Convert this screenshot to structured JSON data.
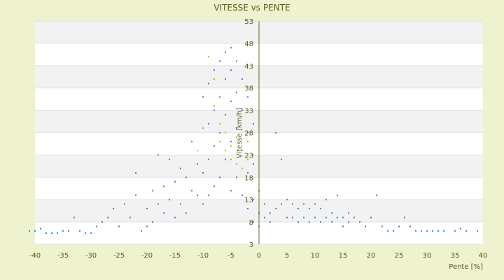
{
  "chart_data": {
    "type": "scatter",
    "title": "VITESSE vs PENTE",
    "xlabel": "Pente [%]",
    "ylabel": "Vitesse [km/h]",
    "xlim": [
      -40,
      40
    ],
    "ylim": [
      3,
      53
    ],
    "xticks": [
      "-40",
      "-35",
      "-30",
      "-25",
      "-20",
      "-15",
      "-10",
      "-5",
      "0",
      "5",
      "10",
      "15",
      "20",
      "25",
      "30",
      "35",
      "40"
    ],
    "yticks": [
      "3",
      "8",
      "13",
      "18",
      "23",
      "28",
      "33",
      "38",
      "43",
      "48",
      "53"
    ],
    "grid": "horizontal alternating bands",
    "legend": "none",
    "series": [
      {
        "color": "#2E86DE",
        "points": [
          [
            -41,
            6
          ],
          [
            -40,
            6
          ],
          [
            -39,
            6.5
          ],
          [
            -38,
            5.5
          ],
          [
            -37,
            5.5
          ],
          [
            -36,
            5.5
          ],
          [
            -35,
            6
          ],
          [
            -34,
            6
          ],
          [
            -33,
            9
          ],
          [
            -32,
            6
          ],
          [
            -31,
            5.5
          ],
          [
            -30,
            5.5
          ],
          [
            -29,
            7
          ],
          [
            -28,
            8
          ],
          [
            -27,
            9
          ],
          [
            -26,
            11
          ],
          [
            -25,
            7
          ],
          [
            -24,
            12
          ],
          [
            -23,
            9
          ],
          [
            -22,
            14
          ],
          [
            -22,
            19
          ],
          [
            -21,
            6
          ],
          [
            -20,
            7
          ],
          [
            -20,
            11
          ],
          [
            -19,
            15
          ],
          [
            -19,
            8
          ],
          [
            -18,
            23
          ],
          [
            -18,
            12
          ],
          [
            -17,
            16
          ],
          [
            -17,
            10
          ],
          [
            -16,
            22
          ],
          [
            -16,
            13
          ],
          [
            -15,
            17
          ],
          [
            -15,
            9
          ],
          [
            -14,
            20
          ],
          [
            -14,
            12
          ],
          [
            -13,
            18
          ],
          [
            -13,
            10
          ],
          [
            -12,
            26
          ],
          [
            -12,
            15
          ],
          [
            -11,
            21
          ],
          [
            -11,
            14
          ],
          [
            -10,
            36
          ],
          [
            -10,
            19
          ],
          [
            -10,
            12
          ],
          [
            -9,
            39
          ],
          [
            -9,
            30
          ],
          [
            -9,
            22
          ],
          [
            -9,
            14
          ],
          [
            -8,
            42
          ],
          [
            -8,
            33
          ],
          [
            -8,
            25
          ],
          [
            -8,
            16
          ],
          [
            -7,
            44
          ],
          [
            -7,
            36
          ],
          [
            -7,
            28
          ],
          [
            -7,
            18
          ],
          [
            -6,
            46
          ],
          [
            -6,
            40
          ],
          [
            -6,
            32
          ],
          [
            -6,
            22
          ],
          [
            -5,
            47
          ],
          [
            -5,
            42
          ],
          [
            -5,
            35
          ],
          [
            -5,
            26
          ],
          [
            -5,
            15
          ],
          [
            -4,
            44
          ],
          [
            -4,
            37
          ],
          [
            -4,
            29
          ],
          [
            -4,
            18
          ],
          [
            -3,
            40
          ],
          [
            -3,
            33
          ],
          [
            -3,
            24
          ],
          [
            -3,
            14
          ],
          [
            -2,
            36
          ],
          [
            -2,
            28
          ],
          [
            -2,
            19
          ],
          [
            -2,
            11
          ],
          [
            -1,
            30
          ],
          [
            -1,
            21
          ],
          [
            -1,
            13
          ],
          [
            -1,
            8
          ],
          [
            0,
            15
          ],
          [
            0,
            10
          ],
          [
            0,
            7
          ],
          [
            1,
            12
          ],
          [
            1,
            9
          ],
          [
            2,
            10
          ],
          [
            2,
            8
          ],
          [
            3,
            28
          ],
          [
            3,
            11
          ],
          [
            4,
            22
          ],
          [
            4,
            12
          ],
          [
            5,
            13
          ],
          [
            5,
            9
          ],
          [
            6,
            12
          ],
          [
            6,
            9
          ],
          [
            7,
            11
          ],
          [
            7,
            8
          ],
          [
            8,
            12
          ],
          [
            8,
            9
          ],
          [
            9,
            11
          ],
          [
            9,
            8
          ],
          [
            10,
            12
          ],
          [
            10,
            9
          ],
          [
            11,
            11
          ],
          [
            11,
            8
          ],
          [
            12,
            13
          ],
          [
            12,
            9
          ],
          [
            13,
            10
          ],
          [
            13,
            8
          ],
          [
            14,
            14
          ],
          [
            14,
            9
          ],
          [
            15,
            9
          ],
          [
            15,
            7
          ],
          [
            16,
            10
          ],
          [
            16,
            8
          ],
          [
            17,
            9
          ],
          [
            18,
            8
          ],
          [
            19,
            7
          ],
          [
            20,
            9
          ],
          [
            21,
            14
          ],
          [
            22,
            7
          ],
          [
            23,
            6
          ],
          [
            24,
            6
          ],
          [
            25,
            7
          ],
          [
            26,
            9
          ],
          [
            27,
            7
          ],
          [
            28,
            6
          ],
          [
            29,
            6
          ],
          [
            30,
            6
          ],
          [
            31,
            6
          ],
          [
            32,
            6
          ],
          [
            33,
            6
          ],
          [
            35,
            6
          ],
          [
            36,
            6.5
          ],
          [
            37,
            6
          ],
          [
            39,
            6
          ]
        ]
      },
      {
        "color": "#C8B400",
        "points": [
          [
            -9,
            45
          ],
          [
            -8,
            40
          ],
          [
            -8,
            34
          ],
          [
            -7,
            30
          ],
          [
            -7,
            26
          ],
          [
            -6,
            28
          ],
          [
            -6,
            24
          ],
          [
            -5,
            25
          ],
          [
            -5,
            22
          ],
          [
            -4,
            27
          ],
          [
            -4,
            21
          ],
          [
            -3,
            24
          ],
          [
            -3,
            20
          ],
          [
            -2,
            26
          ],
          [
            -2,
            22
          ],
          [
            -1,
            23
          ],
          [
            -10,
            29
          ],
          [
            -11,
            24
          ]
        ]
      }
    ]
  }
}
